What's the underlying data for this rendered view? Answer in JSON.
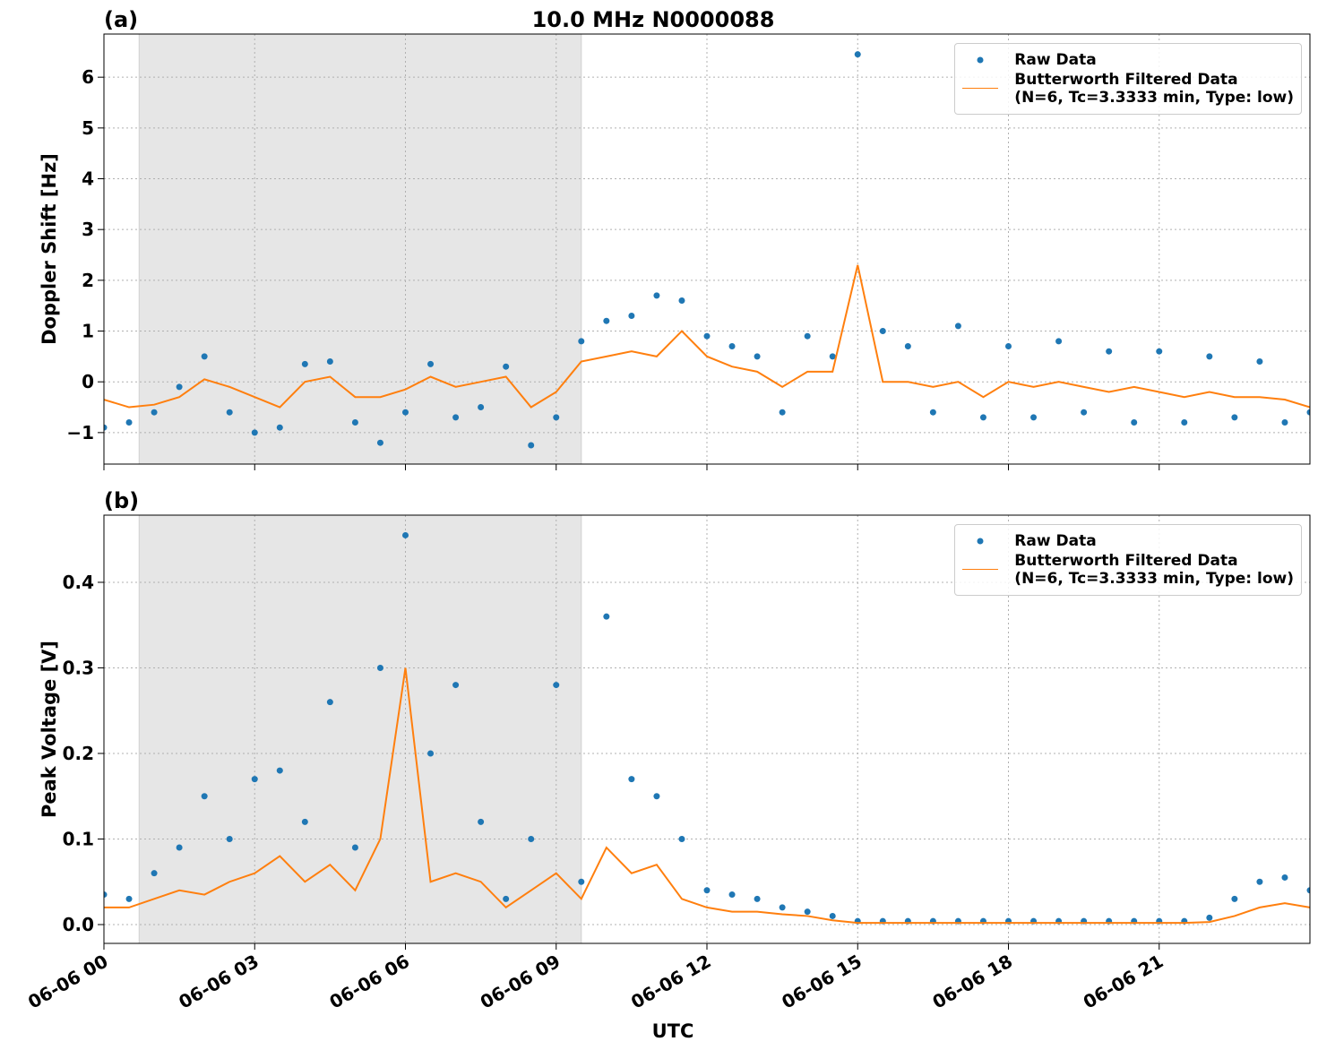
{
  "chart_data": [
    {
      "type": "line",
      "title": "10.0 MHz N0000088",
      "panel_label": "(a)",
      "ylabel": "Doppler Shift [Hz]",
      "xlim": [
        0,
        24
      ],
      "xticks": [
        0,
        3,
        6,
        9,
        12,
        15,
        18,
        21
      ],
      "ylim": [
        -1.62,
        6.85
      ],
      "yticks": [
        {
          "value": -1,
          "label": "−1"
        },
        0,
        1,
        2,
        3,
        4,
        5,
        6
      ],
      "grid": true,
      "legend": "upper right",
      "shaded_span": [
        0.7,
        9.5
      ],
      "shade_color": "#e6e6e6",
      "series": [
        {
          "name": "Raw Data",
          "style": "markers",
          "color": "#1f77b4",
          "x": [
            0,
            0.5,
            1,
            1.5,
            2,
            2.5,
            3,
            3.5,
            4,
            4.5,
            5,
            5.5,
            6,
            6.5,
            7,
            7.5,
            8,
            8.5,
            9,
            9.5,
            10,
            10.5,
            11,
            11.5,
            12,
            12.5,
            13,
            13.5,
            14,
            14.5,
            15,
            15.5,
            16,
            16.5,
            17,
            17.5,
            18,
            18.5,
            19,
            19.5,
            20,
            20.5,
            21,
            21.5,
            22,
            22.5,
            23,
            23.5,
            24
          ],
          "values": [
            -0.9,
            -0.8,
            -0.6,
            -0.1,
            0.5,
            -0.6,
            -1.0,
            -0.9,
            0.35,
            0.4,
            -0.8,
            -1.2,
            -0.6,
            0.35,
            -0.7,
            -0.5,
            0.3,
            -1.25,
            -0.7,
            0.8,
            1.2,
            1.3,
            1.7,
            1.6,
            0.9,
            0.7,
            0.5,
            -0.6,
            0.9,
            0.5,
            6.45,
            1.0,
            0.7,
            -0.6,
            1.1,
            -0.7,
            0.7,
            -0.7,
            0.8,
            -0.6,
            0.6,
            -0.8,
            0.6,
            -0.8,
            0.5,
            -0.7,
            0.4,
            -0.8,
            -0.6
          ]
        },
        {
          "name": "Butterworth Filtered Data\n(N=6, Tc=3.3333 min, Type: low)",
          "style": "line",
          "color": "#ff7f0e",
          "x": [
            0,
            0.5,
            1,
            1.5,
            2,
            2.5,
            3,
            3.5,
            4,
            4.5,
            5,
            5.5,
            6,
            6.5,
            7,
            7.5,
            8,
            8.5,
            9,
            9.5,
            10,
            10.5,
            11,
            11.5,
            12,
            12.5,
            13,
            13.5,
            14,
            14.5,
            15,
            15.5,
            16,
            16.5,
            17,
            17.5,
            18,
            18.5,
            19,
            19.5,
            20,
            20.5,
            21,
            21.5,
            22,
            22.5,
            23,
            23.5,
            24
          ],
          "values": [
            -0.35,
            -0.5,
            -0.45,
            -0.3,
            0.05,
            -0.1,
            -0.3,
            -0.5,
            0.0,
            0.1,
            -0.3,
            -0.3,
            -0.15,
            0.1,
            -0.1,
            0.0,
            0.1,
            -0.5,
            -0.2,
            0.4,
            0.5,
            0.6,
            0.5,
            1.0,
            0.5,
            0.3,
            0.2,
            -0.1,
            0.2,
            0.2,
            2.3,
            0.0,
            0.0,
            -0.1,
            0.0,
            -0.3,
            0.0,
            -0.1,
            0.0,
            -0.1,
            -0.2,
            -0.1,
            -0.2,
            -0.3,
            -0.2,
            -0.3,
            -0.3,
            -0.35,
            -0.5
          ]
        }
      ]
    },
    {
      "type": "line",
      "panel_label": "(b)",
      "ylabel": "Peak Voltage [V]",
      "xlabel": "UTC",
      "xlim": [
        0,
        24
      ],
      "xticks": [
        {
          "value": 0,
          "label": "06-06 00"
        },
        {
          "value": 3,
          "label": "06-06 03"
        },
        {
          "value": 6,
          "label": "06-06 06"
        },
        {
          "value": 9,
          "label": "06-06 09"
        },
        {
          "value": 12,
          "label": "06-06 12"
        },
        {
          "value": 15,
          "label": "06-06 15"
        },
        {
          "value": 18,
          "label": "06-06 18"
        },
        {
          "value": 21,
          "label": "06-06 21"
        }
      ],
      "ylim": [
        -0.022,
        0.4785
      ],
      "yticks": [
        {
          "value": 0,
          "label": "0.0"
        },
        0.1,
        0.2,
        0.3,
        0.4
      ],
      "grid": true,
      "legend": "upper right",
      "shaded_span": [
        0.7,
        9.5
      ],
      "shade_color": "#e6e6e6",
      "series": [
        {
          "name": "Raw Data",
          "style": "markers",
          "color": "#1f77b4",
          "x": [
            0,
            0.5,
            1,
            1.5,
            2,
            2.5,
            3,
            3.5,
            4,
            4.5,
            5,
            5.5,
            6,
            6.5,
            7,
            7.5,
            8,
            8.5,
            9,
            9.5,
            10,
            10.5,
            11,
            11.5,
            12,
            12.5,
            13,
            13.5,
            14,
            14.5,
            15,
            15.5,
            16,
            16.5,
            17,
            17.5,
            18,
            18.5,
            19,
            19.5,
            20,
            20.5,
            21,
            21.5,
            22,
            22.5,
            23,
            23.5,
            24
          ],
          "values": [
            0.035,
            0.03,
            0.06,
            0.09,
            0.15,
            0.1,
            0.17,
            0.18,
            0.12,
            0.26,
            0.09,
            0.3,
            0.455,
            0.2,
            0.28,
            0.12,
            0.03,
            0.1,
            0.28,
            0.05,
            0.36,
            0.17,
            0.15,
            0.1,
            0.04,
            0.035,
            0.03,
            0.02,
            0.015,
            0.01,
            0.004,
            0.004,
            0.004,
            0.004,
            0.004,
            0.004,
            0.004,
            0.004,
            0.004,
            0.004,
            0.004,
            0.004,
            0.004,
            0.004,
            0.008,
            0.03,
            0.05,
            0.055,
            0.04
          ]
        },
        {
          "name": "Butterworth Filtered Data\n(N=6, Tc=3.3333 min, Type: low)",
          "style": "line",
          "color": "#ff7f0e",
          "x": [
            0,
            0.5,
            1,
            1.5,
            2,
            2.5,
            3,
            3.5,
            4,
            4.5,
            5,
            5.5,
            6,
            6.5,
            7,
            7.5,
            8,
            8.5,
            9,
            9.5,
            10,
            10.5,
            11,
            11.5,
            12,
            12.5,
            13,
            13.5,
            14,
            14.5,
            15,
            15.5,
            16,
            16.5,
            17,
            17.5,
            18,
            18.5,
            19,
            19.5,
            20,
            20.5,
            21,
            21.5,
            22,
            22.5,
            23,
            23.5,
            24
          ],
          "values": [
            0.02,
            0.02,
            0.03,
            0.04,
            0.035,
            0.05,
            0.06,
            0.08,
            0.05,
            0.07,
            0.04,
            0.1,
            0.3,
            0.05,
            0.06,
            0.05,
            0.02,
            0.04,
            0.06,
            0.03,
            0.09,
            0.06,
            0.07,
            0.03,
            0.02,
            0.015,
            0.015,
            0.012,
            0.01,
            0.005,
            0.002,
            0.002,
            0.002,
            0.002,
            0.002,
            0.002,
            0.002,
            0.002,
            0.002,
            0.002,
            0.002,
            0.002,
            0.002,
            0.002,
            0.003,
            0.01,
            0.02,
            0.025,
            0.02
          ]
        }
      ]
    }
  ]
}
